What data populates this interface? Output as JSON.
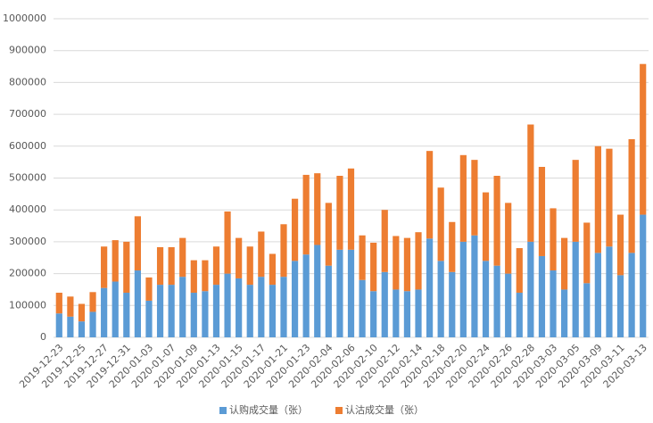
{
  "chart_data": {
    "type": "stacked_bar",
    "categories": [
      "2019-12-23",
      null,
      "2019-12-25",
      null,
      "2019-12-27",
      null,
      "2019-12-31",
      null,
      "2020-01-03",
      null,
      "2020-01-07",
      null,
      "2020-01-09",
      null,
      "2020-01-13",
      null,
      "2020-01-15",
      null,
      "2020-01-17",
      null,
      "2020-01-21",
      null,
      "2020-01-23",
      null,
      "2020-02-04",
      null,
      "2020-02-06",
      null,
      "2020-02-10",
      null,
      "2020-02-12",
      null,
      "2020-02-14",
      null,
      "2020-02-18",
      null,
      "2020-02-20",
      null,
      "2020-02-24",
      null,
      "2020-02-26",
      null,
      "2020-02-28",
      null,
      "2020-03-03",
      null,
      "2020-03-05",
      null,
      "2020-03-09",
      null,
      "2020-03-11",
      null,
      "2020-03-13"
    ],
    "series": [
      {
        "name": "认购成交量（张）",
        "color": "#5b9bd5",
        "values": [
          75000,
          65000,
          50000,
          80000,
          155000,
          175000,
          140000,
          210000,
          115000,
          165000,
          165000,
          190000,
          140000,
          145000,
          165000,
          200000,
          185000,
          165000,
          190000,
          165000,
          190000,
          240000,
          260000,
          290000,
          225000,
          275000,
          275000,
          180000,
          145000,
          205000,
          150000,
          145000,
          150000,
          310000,
          240000,
          205000,
          300000,
          320000,
          240000,
          225000,
          200000,
          140000,
          300000,
          255000,
          210000,
          150000,
          300000,
          170000,
          265000,
          285000,
          195000,
          265000,
          385000
        ]
      },
      {
        "name": "认沽成交量（张）",
        "color": "#ed7d31",
        "values": [
          65000,
          63000,
          55000,
          62000,
          130000,
          130000,
          160000,
          170000,
          73000,
          118000,
          118000,
          122000,
          102000,
          97000,
          120000,
          195000,
          127000,
          120000,
          142000,
          97000,
          165000,
          195000,
          250000,
          225000,
          197000,
          232000,
          255000,
          140000,
          152000,
          195000,
          168000,
          167000,
          180000,
          275000,
          230000,
          157000,
          272000,
          237000,
          215000,
          282000,
          222000,
          140000,
          368000,
          280000,
          195000,
          162000,
          257000,
          190000,
          335000,
          307000,
          190000,
          357000,
          473000
        ]
      }
    ],
    "ylim": [
      0,
      1000000
    ],
    "yticks": [
      0,
      100000,
      200000,
      300000,
      400000,
      500000,
      600000,
      700000,
      800000,
      900000,
      1000000
    ],
    "grid": true,
    "legend": "bottom"
  }
}
